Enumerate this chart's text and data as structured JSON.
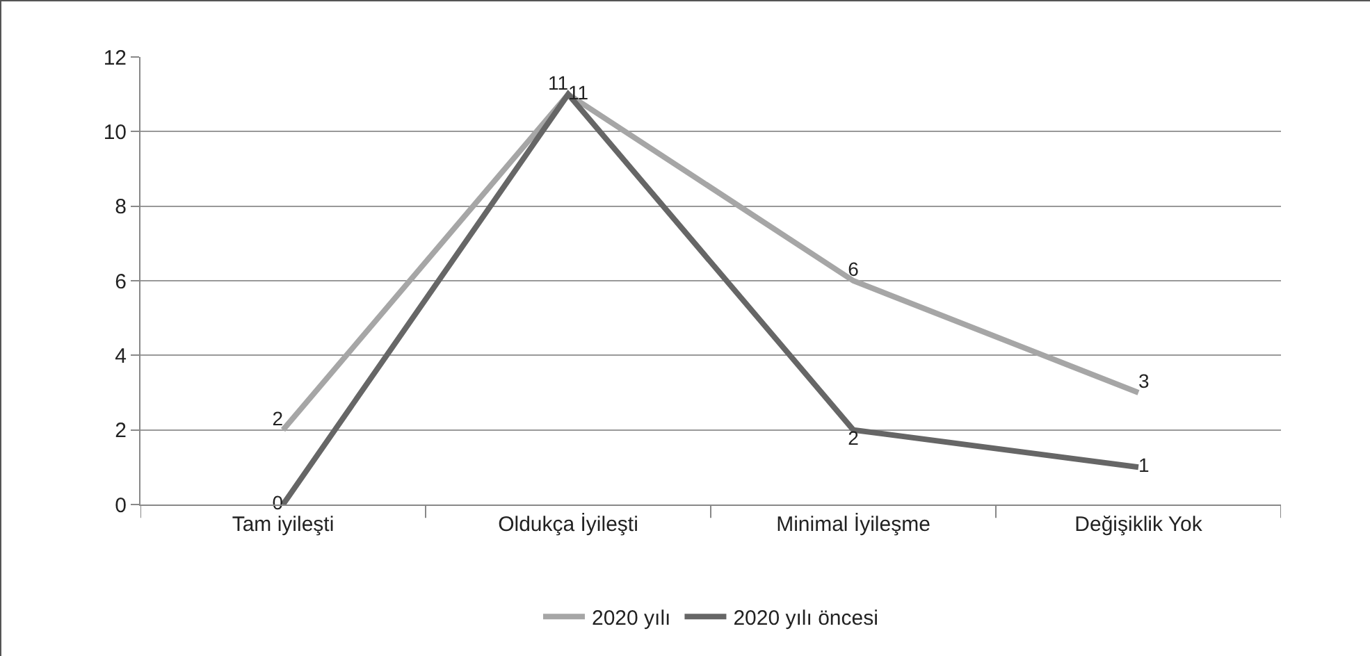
{
  "chart_data": {
    "type": "line",
    "categories": [
      "Tam iyileşti",
      "Oldukça İyileşti",
      "Minimal İyileşme",
      "Değişiklik Yok"
    ],
    "series": [
      {
        "name": "2020 yılı",
        "color": "#a6a6a6",
        "values": [
          2,
          11,
          6,
          3
        ]
      },
      {
        "name": "2020 yılı öncesi",
        "color": "#666666",
        "values": [
          0,
          11,
          2,
          1
        ]
      }
    ],
    "ylim": [
      0,
      12
    ],
    "yticks": [
      0,
      2,
      4,
      6,
      8,
      10,
      12
    ],
    "grid": "y",
    "legend": "bottom",
    "marker": "none",
    "line_style": "solid",
    "data_labels": true
  }
}
